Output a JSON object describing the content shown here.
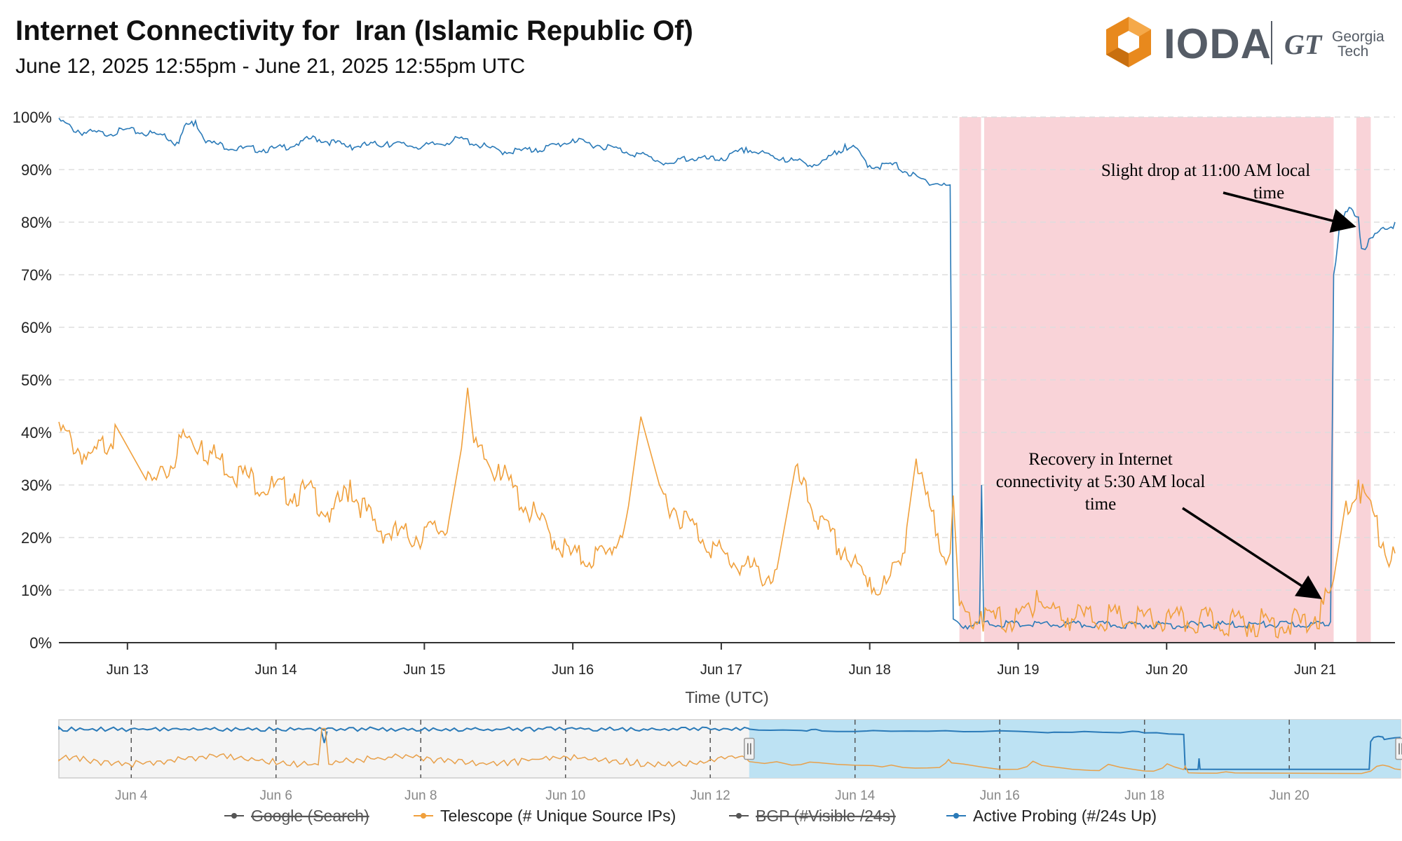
{
  "header": {
    "title": "Internet Connectivity for  Iran (Islamic Republic Of)",
    "subtitle": "June 12, 2025 12:55pm - June 21, 2025 12:55pm UTC"
  },
  "logo": {
    "name": "IODA",
    "partner_mark": "GT",
    "partner_line1": "Georgia",
    "partner_line2": "Tech",
    "icon": "ioda-hexagon-icon",
    "brand_color": "#e8891d"
  },
  "annotations": [
    {
      "id": "drop",
      "lines": [
        "Slight drop at 11:00 AM local",
        "time"
      ]
    },
    {
      "id": "recovery",
      "lines": [
        "Recovery in Internet",
        "connectivity at 5:30 AM local",
        "time"
      ]
    }
  ],
  "legend": [
    {
      "name": "Google (Search)",
      "color": "#555555",
      "disabled": true
    },
    {
      "name": "Telescope (# Unique Source IPs)",
      "color": "#f0a03c",
      "disabled": false
    },
    {
      "name": "BGP (#Visible /24s)",
      "color": "#555555",
      "disabled": true
    },
    {
      "name": "Active Probing (#/24s Up)",
      "color": "#2a7ab8",
      "disabled": false
    }
  ],
  "chart_data": {
    "type": "line",
    "title": "Internet Connectivity for  Iran (Islamic Republic Of)",
    "xlabel": "Time (UTC)",
    "ylabel": "",
    "y_unit": "%",
    "ylim": [
      0,
      100
    ],
    "y_ticks": [
      "0%",
      "10%",
      "20%",
      "30%",
      "40%",
      "50%",
      "60%",
      "70%",
      "80%",
      "90%",
      "100%"
    ],
    "x_ticks": [
      "Jun 13",
      "Jun 14",
      "Jun 15",
      "Jun 16",
      "Jun 17",
      "Jun 18",
      "Jun 19",
      "Jun 20",
      "Jun 21"
    ],
    "xlim": [
      "2025-06-12 12:55",
      "2025-06-21 12:55"
    ],
    "grid": "horizontal dashed",
    "legend_position": "bottom",
    "outage_shading_color": "#f9d3d8",
    "outage_periods": [
      [
        "2025-06-18 14:30",
        "2025-06-18 18:00"
      ],
      [
        "2025-06-18 18:30",
        "2025-06-21 03:00"
      ],
      [
        "2025-06-21 06:40",
        "2025-06-21 09:00"
      ]
    ],
    "series": [
      {
        "name": "Active Probing (#/24s Up)",
        "color": "#2a7ab8",
        "points": [
          [
            "2025-06-12 12:55",
            99.8
          ],
          [
            "2025-06-12 16:00",
            97.5
          ],
          [
            "2025-06-12 20:00",
            97.2
          ],
          [
            "2025-06-13 00:00",
            97.8
          ],
          [
            "2025-06-13 06:00",
            96.8
          ],
          [
            "2025-06-13 08:00",
            95.2
          ],
          [
            "2025-06-13 09:30",
            98.8
          ],
          [
            "2025-06-13 11:00",
            99.3
          ],
          [
            "2025-06-13 13:00",
            95.5
          ],
          [
            "2025-06-13 18:00",
            94.3
          ],
          [
            "2025-06-14 00:00",
            94.2
          ],
          [
            "2025-06-14 04:00",
            95.5
          ],
          [
            "2025-06-14 06:00",
            96.4
          ],
          [
            "2025-06-14 12:00",
            94.7
          ],
          [
            "2025-06-14 18:00",
            95.3
          ],
          [
            "2025-06-15 00:00",
            94.7
          ],
          [
            "2025-06-15 06:00",
            96.2
          ],
          [
            "2025-06-15 12:00",
            93.8
          ],
          [
            "2025-06-15 18:00",
            94.0
          ],
          [
            "2025-06-16 00:00",
            95.8
          ],
          [
            "2025-06-16 06:00",
            94.6
          ],
          [
            "2025-06-16 12:00",
            92.8
          ],
          [
            "2025-06-16 16:00",
            91.2
          ],
          [
            "2025-06-16 18:00",
            92.5
          ],
          [
            "2025-06-17 00:00",
            92.2
          ],
          [
            "2025-06-17 04:00",
            94.2
          ],
          [
            "2025-06-17 10:00",
            92.3
          ],
          [
            "2025-06-17 16:00",
            91.2
          ],
          [
            "2025-06-17 20:00",
            94.8
          ],
          [
            "2025-06-17 22:00",
            94.0
          ],
          [
            "2025-06-18 00:00",
            90.8
          ],
          [
            "2025-06-18 04:00",
            91.3
          ],
          [
            "2025-06-18 08:00",
            88.5
          ],
          [
            "2025-06-18 12:00",
            87.4
          ],
          [
            "2025-06-18 13:00",
            87.1
          ],
          [
            "2025-06-18 13:30",
            4.5
          ],
          [
            "2025-06-18 14:30",
            3.6
          ],
          [
            "2025-06-18 17:45",
            3.7
          ],
          [
            "2025-06-18 18:05",
            30.0
          ],
          [
            "2025-06-18 18:25",
            4.0
          ],
          [
            "2025-06-19 00:00",
            3.8
          ],
          [
            "2025-06-20 00:00",
            3.7
          ],
          [
            "2025-06-21 00:00",
            3.8
          ],
          [
            "2025-06-21 02:30",
            4.0
          ],
          [
            "2025-06-21 03:00",
            70.0
          ],
          [
            "2025-06-21 04:00",
            80.0
          ],
          [
            "2025-06-21 05:30",
            82.8
          ],
          [
            "2025-06-21 07:00",
            81.0
          ],
          [
            "2025-06-21 07:30",
            75.0
          ],
          [
            "2025-06-21 09:00",
            77.0
          ],
          [
            "2025-06-21 11:00",
            79.0
          ],
          [
            "2025-06-21 12:55",
            80.0
          ]
        ]
      },
      {
        "name": "Telescope (# Unique Source IPs)",
        "color": "#f0a03c",
        "points": [
          [
            "2025-06-12 12:55",
            42.0
          ],
          [
            "2025-06-12 18:00",
            36.0
          ],
          [
            "2025-06-12 22:00",
            41.5
          ],
          [
            "2025-06-13 03:00",
            31.0
          ],
          [
            "2025-06-13 06:00",
            32.5
          ],
          [
            "2025-06-13 09:00",
            40.5
          ],
          [
            "2025-06-13 12:00",
            38.5
          ],
          [
            "2025-06-13 18:00",
            33.5
          ],
          [
            "2025-06-14 00:00",
            30.5
          ],
          [
            "2025-06-14 06:00",
            29.5
          ],
          [
            "2025-06-14 09:00",
            25.5
          ],
          [
            "2025-06-14 12:00",
            31.0
          ],
          [
            "2025-06-14 16:00",
            23.5
          ],
          [
            "2025-06-14 20:00",
            21.5
          ],
          [
            "2025-06-15 00:00",
            22.0
          ],
          [
            "2025-06-15 04:00",
            23.5
          ],
          [
            "2025-06-15 06:00",
            37.0
          ],
          [
            "2025-06-15 07:00",
            48.5
          ],
          [
            "2025-06-15 08:00",
            38.0
          ],
          [
            "2025-06-15 12:00",
            34.0
          ],
          [
            "2025-06-15 18:00",
            25.0
          ],
          [
            "2025-06-16 00:00",
            17.5
          ],
          [
            "2025-06-16 06:00",
            18.0
          ],
          [
            "2025-06-16 09:00",
            26.0
          ],
          [
            "2025-06-16 11:00",
            43.0
          ],
          [
            "2025-06-16 14:00",
            30.0
          ],
          [
            "2025-06-16 18:00",
            25.0
          ],
          [
            "2025-06-17 00:00",
            18.0
          ],
          [
            "2025-06-17 06:00",
            14.5
          ],
          [
            "2025-06-17 09:00",
            14.0
          ],
          [
            "2025-06-17 12:00",
            33.5
          ],
          [
            "2025-06-17 16:00",
            24.0
          ],
          [
            "2025-06-17 20:00",
            18.0
          ],
          [
            "2025-06-18 00:00",
            12.5
          ],
          [
            "2025-06-18 03:00",
            12.0
          ],
          [
            "2025-06-18 06:00",
            22.0
          ],
          [
            "2025-06-18 07:30",
            35.0
          ],
          [
            "2025-06-18 10:00",
            25.0
          ],
          [
            "2025-06-18 13:00",
            17.0
          ],
          [
            "2025-06-18 13:30",
            28.0
          ],
          [
            "2025-06-18 14:30",
            7.0
          ],
          [
            "2025-06-18 18:00",
            6.0
          ],
          [
            "2025-06-19 00:00",
            5.5
          ],
          [
            "2025-06-19 03:00",
            10.0
          ],
          [
            "2025-06-19 06:00",
            6.5
          ],
          [
            "2025-06-20 00:00",
            5.5
          ],
          [
            "2025-06-21 00:00",
            5.0
          ],
          [
            "2025-06-21 03:00",
            12.0
          ],
          [
            "2025-06-21 05:00",
            27.0
          ],
          [
            "2025-06-21 07:00",
            31.0
          ],
          [
            "2025-06-21 09:00",
            27.0
          ],
          [
            "2025-06-21 11:00",
            19.0
          ],
          [
            "2025-06-21 12:55",
            17.0
          ]
        ]
      }
    ],
    "navigator": {
      "xlim": [
        "2025-06-03 00:00",
        "2025-06-21 12:55"
      ],
      "x_ticks": [
        "Jun 4",
        "Jun 6",
        "Jun 8",
        "Jun 10",
        "Jun 12",
        "Jun 14",
        "Jun 16",
        "Jun 18",
        "Jun 20"
      ],
      "selected_range": [
        "2025-06-12 12:55",
        "2025-06-21 12:55"
      ],
      "telescope_spike": [
        "2025-06-06 16:00",
        0.85
      ]
    }
  }
}
